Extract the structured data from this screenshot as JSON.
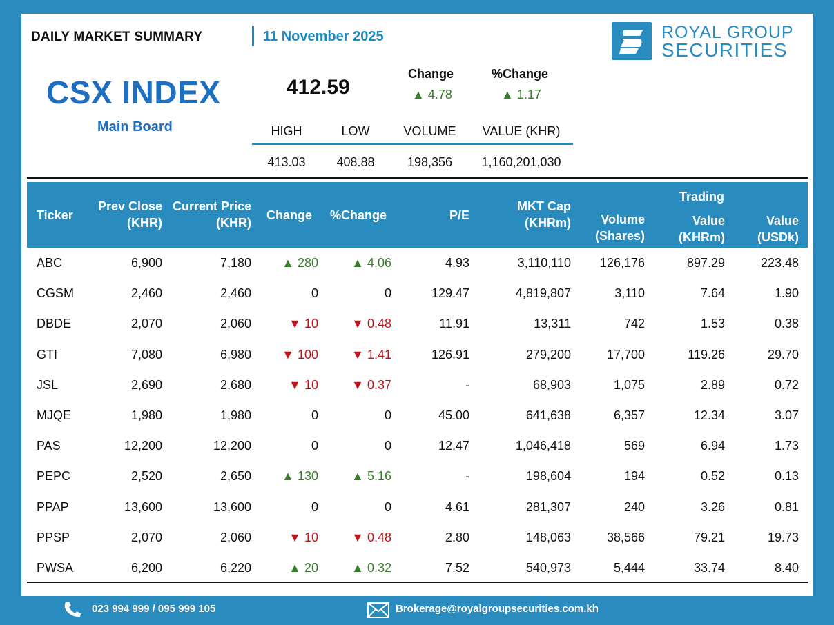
{
  "header": {
    "title": "DAILY MARKET SUMMARY",
    "date": "11 November 2025",
    "logo_line1": "ROYAL GROUP",
    "logo_line2": "SECURITIES"
  },
  "index": {
    "name": "CSX INDEX",
    "board": "Main Board",
    "value": "412.59",
    "change_label": "Change",
    "change_value": "▲ 4.78",
    "pct_label": "%Change",
    "pct_value": "▲ 1.17",
    "stats_labels": [
      "HIGH",
      "LOW",
      "VOLUME",
      "VALUE (KHR)"
    ],
    "stats_values": [
      "413.03",
      "408.88",
      "198,356",
      "1,160,201,030"
    ]
  },
  "table": {
    "headers": {
      "ticker": "Ticker",
      "prev_close": "Prev Close",
      "prev_close_unit": "(KHR)",
      "current_price": "Current Price",
      "current_price_unit": "(KHR)",
      "change": "Change",
      "pct_change": "%Change",
      "pe": "P/E",
      "mkt_cap": "MKT Cap",
      "mkt_cap_unit": "(KHRm)",
      "volume": "Volume",
      "volume_unit": "(Shares)",
      "trading": "Trading",
      "value_khr": "Value",
      "value_khr_unit": "(KHRm)",
      "value_usd": "Value",
      "value_usd_unit": "(USDk)"
    },
    "rows": [
      {
        "ticker": "ABC",
        "prev": "6,900",
        "cur": "7,180",
        "chg": "▲ 280",
        "pct": "▲ 4.06",
        "dir": "up",
        "pe": "4.93",
        "cap": "3,110,110",
        "vol": "126,176",
        "vkhr": "897.29",
        "vusd": "223.48"
      },
      {
        "ticker": "CGSM",
        "prev": "2,460",
        "cur": "2,460",
        "chg": "0",
        "pct": "0",
        "dir": "flat",
        "pe": "129.47",
        "cap": "4,819,807",
        "vol": "3,110",
        "vkhr": "7.64",
        "vusd": "1.90"
      },
      {
        "ticker": "DBDE",
        "prev": "2,070",
        "cur": "2,060",
        "chg": "▼ 10",
        "pct": "▼ 0.48",
        "dir": "down",
        "pe": "11.91",
        "cap": "13,311",
        "vol": "742",
        "vkhr": "1.53",
        "vusd": "0.38"
      },
      {
        "ticker": "GTI",
        "prev": "7,080",
        "cur": "6,980",
        "chg": "▼ 100",
        "pct": "▼ 1.41",
        "dir": "down",
        "pe": "126.91",
        "cap": "279,200",
        "vol": "17,700",
        "vkhr": "119.26",
        "vusd": "29.70"
      },
      {
        "ticker": "JSL",
        "prev": "2,690",
        "cur": "2,680",
        "chg": "▼ 10",
        "pct": "▼ 0.37",
        "dir": "down",
        "pe": "-",
        "cap": "68,903",
        "vol": "1,075",
        "vkhr": "2.89",
        "vusd": "0.72"
      },
      {
        "ticker": "MJQE",
        "prev": "1,980",
        "cur": "1,980",
        "chg": "0",
        "pct": "0",
        "dir": "flat",
        "pe": "45.00",
        "cap": "641,638",
        "vol": "6,357",
        "vkhr": "12.34",
        "vusd": "3.07"
      },
      {
        "ticker": "PAS",
        "prev": "12,200",
        "cur": "12,200",
        "chg": "0",
        "pct": "0",
        "dir": "flat",
        "pe": "12.47",
        "cap": "1,046,418",
        "vol": "569",
        "vkhr": "6.94",
        "vusd": "1.73"
      },
      {
        "ticker": "PEPC",
        "prev": "2,520",
        "cur": "2,650",
        "chg": "▲ 130",
        "pct": "▲ 5.16",
        "dir": "up",
        "pe": "-",
        "cap": "198,604",
        "vol": "194",
        "vkhr": "0.52",
        "vusd": "0.13"
      },
      {
        "ticker": "PPAP",
        "prev": "13,600",
        "cur": "13,600",
        "chg": "0",
        "pct": "0",
        "dir": "flat",
        "pe": "4.61",
        "cap": "281,307",
        "vol": "240",
        "vkhr": "3.26",
        "vusd": "0.81"
      },
      {
        "ticker": "PPSP",
        "prev": "2,070",
        "cur": "2,060",
        "chg": "▼ 10",
        "pct": "▼ 0.48",
        "dir": "down",
        "pe": "2.80",
        "cap": "148,063",
        "vol": "38,566",
        "vkhr": "79.21",
        "vusd": "19.73"
      },
      {
        "ticker": "PWSA",
        "prev": "6,200",
        "cur": "6,220",
        "chg": "▲ 20",
        "pct": "▲ 0.32",
        "dir": "up",
        "pe": "7.52",
        "cap": "540,973",
        "vol": "5,444",
        "vkhr": "33.74",
        "vusd": "8.40"
      }
    ]
  },
  "footer": {
    "phone": "023 994 999 / 095 999 105",
    "email": "Brokerage@royalgroupsecurities.com.kh"
  },
  "colors": {
    "brand_blue": "#2a8bbf",
    "index_blue": "#1f6fc0",
    "up_green": "#3a7d2c",
    "down_red": "#c0141b"
  }
}
